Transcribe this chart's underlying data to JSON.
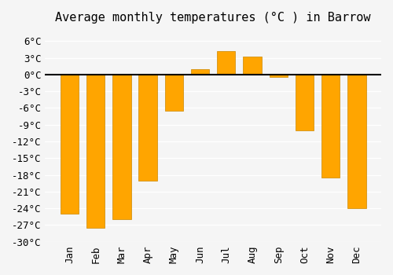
{
  "months": [
    "Jan",
    "Feb",
    "Mar",
    "Apr",
    "May",
    "Jun",
    "Jul",
    "Aug",
    "Sep",
    "Oct",
    "Nov",
    "Dec"
  ],
  "values": [
    -25.0,
    -27.5,
    -26.0,
    -19.0,
    -6.5,
    1.0,
    4.2,
    3.2,
    -0.5,
    -10.0,
    -18.5,
    -24.0
  ],
  "bar_color": "#FFA500",
  "bar_edge_color": "#CC8800",
  "title": "Average monthly temperatures (°C ) in Barrow",
  "ylim": [
    -30,
    8
  ],
  "yticks": [
    -30,
    -27,
    -24,
    -21,
    -18,
    -15,
    -12,
    -9,
    -6,
    -3,
    0,
    3,
    6
  ],
  "ytick_labels": [
    "-30°C",
    "-27°C",
    "-24°C",
    "-21°C",
    "-18°C",
    "-15°C",
    "-12°C",
    "-9°C",
    "-6°C",
    "-3°C",
    "0°C",
    "3°C",
    "6°C"
  ],
  "background_color": "#f5f5f5",
  "grid_color": "#ffffff",
  "title_fontsize": 11,
  "tick_fontsize": 9
}
